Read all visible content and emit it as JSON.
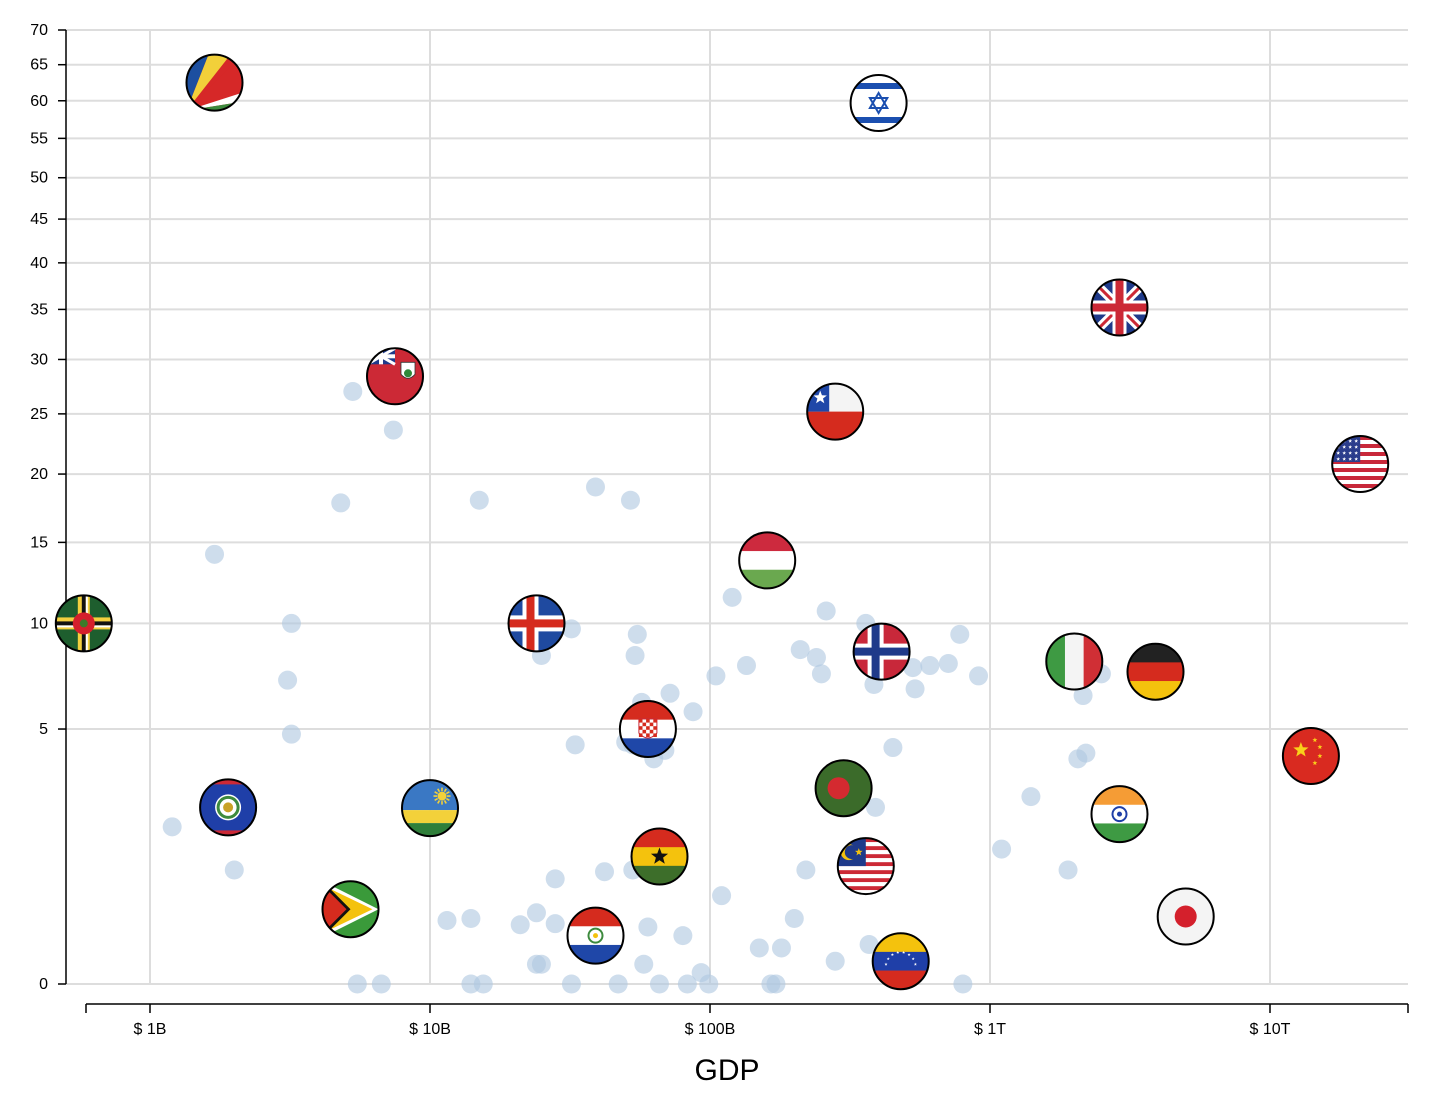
{
  "chart_data": {
    "type": "scatter",
    "xlabel": "GDP",
    "ylabel": "",
    "x_scale": "log",
    "y_scale": "sqrt",
    "xlim": [
      550000000,
      27000000000000
    ],
    "ylim": [
      0,
      70
    ],
    "x_ticks": [
      {
        "value": 1000000000,
        "label": "$ 1B"
      },
      {
        "value": 10000000000,
        "label": "$ 10B"
      },
      {
        "value": 100000000000,
        "label": "$ 100B"
      },
      {
        "value": 1000000000000,
        "label": "$ 1T"
      },
      {
        "value": 10000000000000,
        "label": "$ 10T"
      }
    ],
    "y_ticks": [
      {
        "value": 0,
        "label": "0"
      },
      {
        "value": 5,
        "label": "5"
      },
      {
        "value": 10,
        "label": "10"
      },
      {
        "value": 15,
        "label": "15"
      },
      {
        "value": 20,
        "label": "20"
      },
      {
        "value": 25,
        "label": "25"
      },
      {
        "value": 30,
        "label": "30"
      },
      {
        "value": 35,
        "label": "35"
      },
      {
        "value": 40,
        "label": "40"
      },
      {
        "value": 45,
        "label": "45"
      },
      {
        "value": 50,
        "label": "50"
      },
      {
        "value": 55,
        "label": "55"
      },
      {
        "value": 60,
        "label": "60"
      },
      {
        "value": 65,
        "label": "65"
      },
      {
        "value": 70,
        "label": "70"
      }
    ],
    "grid": true,
    "background_points": [
      [
        5300000000,
        27.0
      ],
      [
        7400000000,
        23.6
      ],
      [
        4800000000,
        17.8
      ],
      [
        15000000000,
        18.0
      ],
      [
        39000000000,
        19.0
      ],
      [
        52000000000,
        18.0
      ],
      [
        1700000000,
        14.2
      ],
      [
        3200000000,
        10.0
      ],
      [
        3100000000,
        7.1
      ],
      [
        3200000000,
        4.8
      ],
      [
        1200000000,
        1.9
      ],
      [
        2000000000,
        1.0
      ],
      [
        32000000000,
        9.7
      ],
      [
        55000000000,
        9.4
      ],
      [
        25000000000,
        8.3
      ],
      [
        54000000000,
        8.3
      ],
      [
        57000000000,
        6.1
      ],
      [
        72000000000,
        6.5
      ],
      [
        87000000000,
        5.7
      ],
      [
        33000000000,
        4.4
      ],
      [
        50000000000,
        4.5
      ],
      [
        53000000000,
        4.4
      ],
      [
        69000000000,
        4.2
      ],
      [
        63000000000,
        3.9
      ],
      [
        120000000000,
        11.5
      ],
      [
        105000000000,
        7.3
      ],
      [
        135000000000,
        7.8
      ],
      [
        260000000000,
        10.7
      ],
      [
        360000000000,
        10.0
      ],
      [
        210000000000,
        8.6
      ],
      [
        240000000000,
        8.2
      ],
      [
        250000000000,
        7.4
      ],
      [
        385000000000,
        6.9
      ],
      [
        540000000000,
        6.7
      ],
      [
        530000000000,
        7.7
      ],
      [
        610000000000,
        7.8
      ],
      [
        710000000000,
        7.9
      ],
      [
        780000000000,
        9.4
      ],
      [
        910000000000,
        7.3
      ],
      [
        450000000000,
        4.3
      ],
      [
        1700000000000,
        8.2
      ],
      [
        2150000000000,
        6.4
      ],
      [
        2500000000000,
        7.4
      ],
      [
        2060000000000,
        3.9
      ],
      [
        2200000000000,
        4.1
      ],
      [
        1400000000000,
        2.7
      ],
      [
        1100000000000,
        1.4
      ],
      [
        1900000000000,
        1.0
      ],
      [
        390000000000,
        2.4
      ],
      [
        330000000000,
        1.2
      ],
      [
        220000000000,
        1.0
      ],
      [
        53000000000,
        1.0
      ],
      [
        42000000000,
        0.97
      ],
      [
        28000000000,
        0.85
      ],
      [
        76000000000,
        1.4
      ],
      [
        110000000000,
        0.6
      ],
      [
        5400000000,
        0.48
      ],
      [
        11500000000,
        0.31
      ],
      [
        14000000000,
        0.33
      ],
      [
        24000000000,
        0.39
      ],
      [
        21000000000,
        0.27
      ],
      [
        28000000000,
        0.28
      ],
      [
        60000000000,
        0.25
      ],
      [
        80000000000,
        0.18
      ],
      [
        150000000000,
        0.1
      ],
      [
        180000000000,
        0.1
      ],
      [
        280000000000,
        0.04
      ],
      [
        370000000000,
        0.12
      ],
      [
        5500000000,
        0.0
      ],
      [
        6700000000,
        0.0
      ],
      [
        14000000000,
        0.0
      ],
      [
        15500000000,
        0.0
      ],
      [
        24000000000,
        0.03
      ],
      [
        25000000000,
        0.03
      ],
      [
        32000000000,
        0.0
      ],
      [
        47000000000,
        0.0
      ],
      [
        58000000000,
        0.03
      ],
      [
        66000000000,
        0.0
      ],
      [
        83000000000,
        0.0
      ],
      [
        93000000000,
        0.01
      ],
      [
        99000000000,
        0.0
      ],
      [
        165000000000,
        0.0
      ],
      [
        172000000000,
        0.0
      ],
      [
        800000000000,
        0.0
      ],
      [
        200000000000,
        0.33
      ]
    ],
    "flag_points": [
      {
        "icon": "seychelles-flag-icon",
        "x": 1700000000,
        "y": 62.5
      },
      {
        "icon": "israel-flag-icon",
        "x": 400000000000,
        "y": 59.7
      },
      {
        "icon": "united-kingdom-flag-icon",
        "x": 2900000000000,
        "y": 35.2
      },
      {
        "icon": "bermuda-flag-icon",
        "x": 7500000000,
        "y": 28.4
      },
      {
        "icon": "chile-flag-icon",
        "x": 280000000000,
        "y": 25.2
      },
      {
        "icon": "united-states-flag-icon",
        "x": 21000000000000,
        "y": 20.8
      },
      {
        "icon": "hungary-flag-icon",
        "x": 160000000000,
        "y": 13.8
      },
      {
        "icon": "dominica-flag-icon",
        "x": 580000000,
        "y": 10.0
      },
      {
        "icon": "iceland-flag-icon",
        "x": 24000000000,
        "y": 10.0
      },
      {
        "icon": "norway-flag-icon",
        "x": 410000000000,
        "y": 8.5
      },
      {
        "icon": "italy-flag-icon",
        "x": 2000000000000,
        "y": 8.0
      },
      {
        "icon": "germany-flag-icon",
        "x": 3900000000000,
        "y": 7.5
      },
      {
        "icon": "croatia-flag-icon",
        "x": 60000000000,
        "y": 5.0
      },
      {
        "icon": "china-flag-icon",
        "x": 14000000000000,
        "y": 4.0
      },
      {
        "icon": "bangladesh-flag-icon",
        "x": 300000000000,
        "y": 2.95
      },
      {
        "icon": "belize-flag-icon",
        "x": 1900000000,
        "y": 2.4
      },
      {
        "icon": "rwanda-flag-icon",
        "x": 10000000000,
        "y": 2.38
      },
      {
        "icon": "india-flag-icon",
        "x": 2900000000000,
        "y": 2.22
      },
      {
        "icon": "ghana-flag-icon",
        "x": 66000000000,
        "y": 1.25
      },
      {
        "icon": "malaysia-flag-icon",
        "x": 360000000000,
        "y": 1.07
      },
      {
        "icon": "guyana-flag-icon",
        "x": 5200000000,
        "y": 0.43
      },
      {
        "icon": "japan-flag-icon",
        "x": 5000000000000,
        "y": 0.35
      },
      {
        "icon": "paraguay-flag-icon",
        "x": 39000000000,
        "y": 0.18
      },
      {
        "icon": "venezuela-flag-icon",
        "x": 480000000000,
        "y": 0.04
      }
    ]
  }
}
